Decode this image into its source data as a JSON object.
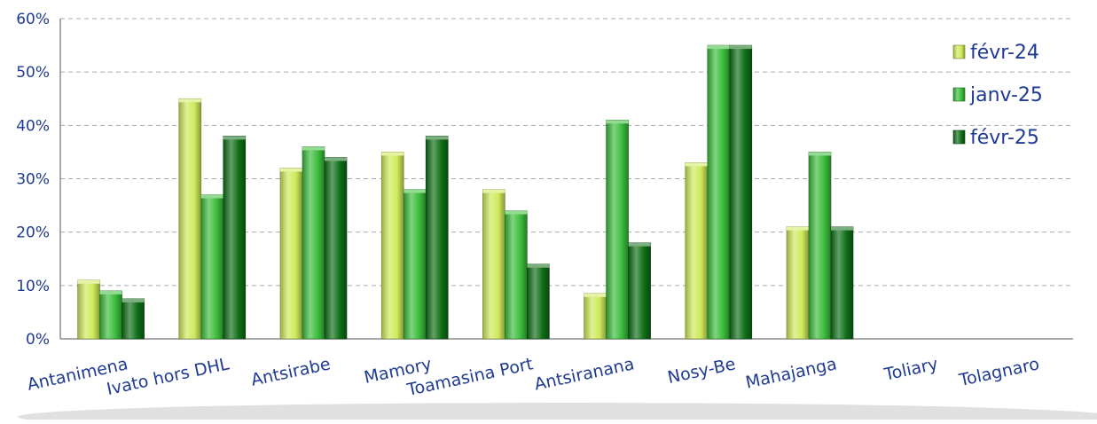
{
  "chart_data": {
    "type": "bar",
    "categories": [
      "Antanimena",
      "Ivato hors DHL",
      "Antsirabe",
      "Mamory",
      "Toamasina Port",
      "Antsiranana",
      "Nosy-Be",
      "Mahajanga",
      "Toliary",
      "Tolagnaro"
    ],
    "series": [
      {
        "name": "févr-24",
        "color": "#cfea5a",
        "values": [
          0.11,
          0.45,
          0.32,
          0.35,
          0.28,
          0.085,
          0.33,
          0.21,
          0,
          0
        ]
      },
      {
        "name": "janv-25",
        "color": "#3bbd3b",
        "values": [
          0.09,
          0.27,
          0.36,
          0.28,
          0.24,
          0.41,
          0.55,
          0.35,
          0,
          0
        ]
      },
      {
        "name": "févr-25",
        "color": "#0f6e16",
        "values": [
          0.075,
          0.38,
          0.34,
          0.38,
          0.14,
          0.18,
          0.55,
          0.21,
          0,
          0
        ]
      }
    ],
    "yticks": [
      "0%",
      "10%",
      "20%",
      "30%",
      "40%",
      "50%",
      "60%"
    ],
    "ylim": [
      0,
      0.6
    ],
    "grid": true,
    "legend_position": "top-right",
    "title": "",
    "xlabel": "",
    "ylabel": ""
  }
}
